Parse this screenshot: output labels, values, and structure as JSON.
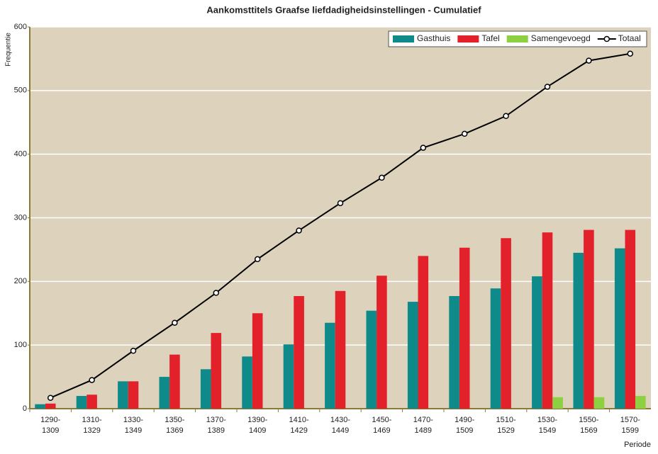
{
  "chart_data": {
    "type": "bar",
    "title": "Aankomsttitels Graafse liefdadigheidsinstellingen  -  Cumulatief",
    "y_label": "Frequentie",
    "x_label": "Periode",
    "categories": [
      "1290-1309",
      "1310-1329",
      "1330-1349",
      "1350-1369",
      "1370-1389",
      "1390-1409",
      "1410-1429",
      "1430-1449",
      "1450-1469",
      "1470-1489",
      "1490-1509",
      "1510-1529",
      "1530-1549",
      "1550-1569",
      "1570-1599"
    ],
    "series": [
      {
        "name": "Gasthuis",
        "color": "#0e8a8a",
        "values": [
          7,
          20,
          43,
          50,
          62,
          82,
          101,
          135,
          154,
          168,
          177,
          189,
          208,
          245,
          252
        ]
      },
      {
        "name": "Tafel",
        "color": "#e3212b",
        "values": [
          8,
          22,
          43,
          85,
          119,
          150,
          177,
          185,
          209,
          240,
          253,
          268,
          277,
          281,
          281
        ]
      },
      {
        "name": "Samengevoegd",
        "color": "#8dd142",
        "values": [
          0,
          0,
          0,
          0,
          0,
          0,
          0,
          0,
          0,
          0,
          0,
          0,
          18,
          18,
          20
        ]
      },
      {
        "name": "Totaal",
        "type": "line",
        "color": "#000000",
        "values": [
          17,
          45,
          91,
          135,
          182,
          235,
          280,
          323,
          363,
          410,
          432,
          460,
          506,
          547,
          558
        ]
      }
    ],
    "ylim": [
      0,
      600
    ],
    "yticks": [
      0,
      100,
      200,
      300,
      400,
      500,
      600
    ],
    "grid": true,
    "legend": "top-right"
  }
}
